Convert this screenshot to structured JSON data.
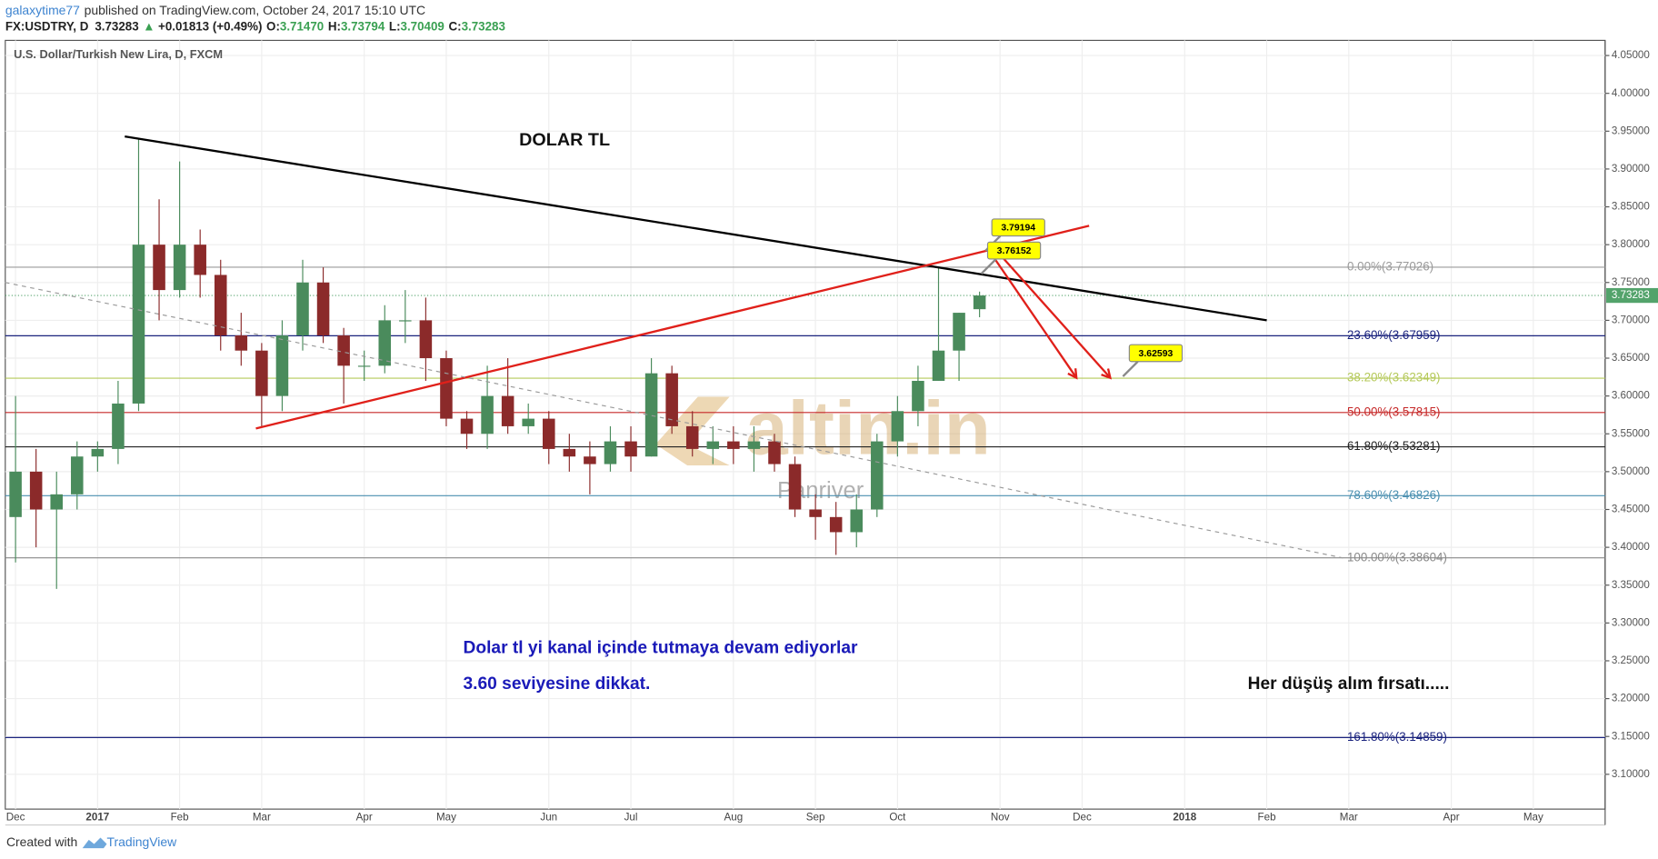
{
  "header": {
    "user": "galaxytime77",
    "published": "published on TradingView.com, October 24, 2017 15:10 UTC",
    "symbol": "FX:USDTRY, D",
    "price": "3.73283",
    "arrow": "▲",
    "change": "+0.01813 (+0.49%)",
    "ohlc": [
      {
        "label": "O:",
        "value": "3.71470"
      },
      {
        "label": "H:",
        "value": "3.73794"
      },
      {
        "label": "L:",
        "value": "3.70409"
      },
      {
        "label": "C:",
        "value": "3.73283"
      }
    ]
  },
  "chart_data": {
    "type": "candlestick",
    "title": "U.S. Dollar/Turkish New Lira, D, FXCM",
    "categories": [
      "Dec",
      null,
      null,
      null,
      "2017",
      null,
      null,
      null,
      "Feb",
      null,
      null,
      null,
      "Mar",
      null,
      null,
      null,
      null,
      "Apr",
      null,
      null,
      null,
      "May",
      null,
      null,
      null,
      null,
      "Jun",
      null,
      null,
      null,
      "Jul",
      null,
      null,
      null,
      null,
      "Aug",
      null,
      null,
      null,
      "Sep",
      null,
      null,
      null,
      "Oct",
      null,
      null,
      null,
      null,
      "Nov",
      null,
      null,
      null,
      "Dec",
      null,
      null,
      null,
      null,
      "2018",
      null,
      null,
      null,
      "Feb",
      null,
      null,
      null,
      "Mar",
      null,
      null,
      null,
      null,
      "Apr",
      null,
      null,
      null,
      "May",
      null,
      null,
      null
    ],
    "open": [
      3.44,
      3.5,
      3.45,
      3.47,
      3.52,
      3.53,
      3.59,
      3.8,
      3.74,
      3.8,
      3.76,
      3.68,
      3.66,
      3.6,
      3.68,
      3.75,
      3.68,
      3.64,
      3.64,
      3.7,
      3.7,
      3.65,
      3.57,
      3.55,
      3.6,
      3.56,
      3.57,
      3.53,
      3.52,
      3.51,
      3.54,
      3.52,
      3.63,
      3.56,
      3.53,
      3.54,
      3.53,
      3.54,
      3.51,
      3.45,
      3.44,
      3.42,
      3.45,
      3.54,
      3.58,
      3.62,
      3.66,
      3.7147,
      null,
      null,
      null,
      null,
      null,
      null,
      null,
      null,
      null,
      null,
      null,
      null,
      null,
      null,
      null,
      null,
      null,
      null,
      null,
      null,
      null,
      null,
      null,
      null,
      null,
      null,
      null,
      null,
      null,
      null
    ],
    "high": [
      3.6,
      3.53,
      3.5,
      3.54,
      3.54,
      3.62,
      3.94,
      3.86,
      3.91,
      3.82,
      3.78,
      3.71,
      3.67,
      3.7,
      3.78,
      3.77,
      3.69,
      3.66,
      3.72,
      3.74,
      3.73,
      3.66,
      3.58,
      3.64,
      3.65,
      3.59,
      3.58,
      3.55,
      3.54,
      3.56,
      3.56,
      3.65,
      3.64,
      3.58,
      3.56,
      3.56,
      3.56,
      3.55,
      3.52,
      3.47,
      3.46,
      3.47,
      3.55,
      3.6,
      3.64,
      3.77026,
      3.71,
      3.73794,
      null,
      null,
      null,
      null,
      null,
      null,
      null,
      null,
      null,
      null,
      null,
      null,
      null,
      null,
      null,
      null,
      null,
      null,
      null,
      null,
      null,
      null,
      null,
      null,
      null,
      null,
      null,
      null,
      null,
      null
    ],
    "low": [
      3.38,
      3.4,
      3.345,
      3.45,
      3.5,
      3.51,
      3.58,
      3.7,
      3.73,
      3.73,
      3.66,
      3.64,
      3.56,
      3.58,
      3.66,
      3.67,
      3.59,
      3.62,
      3.63,
      3.67,
      3.62,
      3.56,
      3.53,
      3.53,
      3.55,
      3.55,
      3.51,
      3.5,
      3.47,
      3.5,
      3.5,
      3.52,
      3.55,
      3.52,
      3.51,
      3.51,
      3.5,
      3.5,
      3.44,
      3.41,
      3.39,
      3.4,
      3.44,
      3.52,
      3.56,
      3.62,
      3.62,
      3.70409,
      null,
      null,
      null,
      null,
      null,
      null,
      null,
      null,
      null,
      null,
      null,
      null,
      null,
      null,
      null,
      null,
      null,
      null,
      null,
      null,
      null,
      null,
      null,
      null,
      null,
      null,
      null,
      null,
      null,
      null
    ],
    "close": [
      3.5,
      3.45,
      3.47,
      3.52,
      3.53,
      3.59,
      3.8,
      3.74,
      3.8,
      3.76,
      3.68,
      3.66,
      3.6,
      3.68,
      3.75,
      3.68,
      3.64,
      3.64,
      3.7,
      3.7,
      3.65,
      3.57,
      3.55,
      3.6,
      3.56,
      3.57,
      3.53,
      3.52,
      3.51,
      3.54,
      3.52,
      3.63,
      3.56,
      3.53,
      3.54,
      3.53,
      3.54,
      3.51,
      3.45,
      3.44,
      3.42,
      3.45,
      3.54,
      3.58,
      3.62,
      3.66,
      3.71,
      3.73283,
      null,
      null,
      null,
      null,
      null,
      null,
      null,
      null,
      null,
      null,
      null,
      null,
      null,
      null,
      null,
      null,
      null,
      null,
      null,
      null,
      null,
      null,
      null,
      null,
      null,
      null,
      null,
      null,
      null,
      null
    ],
    "up_color": "#4a8b5c",
    "down_color": "#8b2a2a",
    "ylim": [
      3.054,
      4.07
    ],
    "yticks": [
      {
        "value": 3.1,
        "label": "3.10000"
      },
      {
        "value": 3.15,
        "label": "3.15000"
      },
      {
        "value": 3.2,
        "label": "3.20000"
      },
      {
        "value": 3.25,
        "label": "3.25000"
      },
      {
        "value": 3.3,
        "label": "3.30000"
      },
      {
        "value": 3.35,
        "label": "3.35000"
      },
      {
        "value": 3.4,
        "label": "3.40000"
      },
      {
        "value": 3.45,
        "label": "3.45000"
      },
      {
        "value": 3.5,
        "label": "3.50000"
      },
      {
        "value": 3.55,
        "label": "3.55000"
      },
      {
        "value": 3.6,
        "label": "3.60000"
      },
      {
        "value": 3.65,
        "label": "3.65000"
      },
      {
        "value": 3.7,
        "label": "3.70000"
      },
      {
        "value": 3.75,
        "label": "3.75000"
      },
      {
        "value": 3.8,
        "label": "3.80000"
      },
      {
        "value": 3.85,
        "label": "3.85000"
      },
      {
        "value": 3.9,
        "label": "3.90000"
      },
      {
        "value": 3.95,
        "label": "3.95000"
      },
      {
        "value": 4.0,
        "label": "4.00000"
      },
      {
        "value": 4.05,
        "label": "4.05000"
      }
    ],
    "grid": true,
    "last_price": 3.73283,
    "last_price_color": "#53a36b",
    "fib_levels": [
      {
        "label": "0.00%(3.77026)",
        "value": 3.77026,
        "color": "#9a9a9a"
      },
      {
        "label": "23.60%(3.67959)",
        "value": 3.67959,
        "color": "#1a237e"
      },
      {
        "label": "38.20%(3.62349)",
        "value": 3.62349,
        "color": "#b5c95a"
      },
      {
        "label": "50.00%(3.57815)",
        "value": 3.57815,
        "color": "#c62828"
      },
      {
        "label": "61.80%(3.53281)",
        "value": 3.53281,
        "color": "#222222"
      },
      {
        "label": "78.60%(3.46826)",
        "value": 3.46826,
        "color": "#4a8fb0"
      },
      {
        "label": "100.00%(3.38604)",
        "value": 3.38604,
        "color": "#8a8a8a"
      },
      {
        "label": "161.80%(3.14859)",
        "value": 3.14859,
        "color": "#1a237e"
      }
    ],
    "trendlines": [
      {
        "color": "#000000",
        "values": [
          3.943,
          3.7
        ],
        "dashed": false
      },
      {
        "color": "#e0201a",
        "values": [
          3.557,
          3.825
        ],
        "dashed": false
      },
      {
        "color": "#999999",
        "values": [
          3.75,
          3.386
        ],
        "dashed": true
      }
    ],
    "arrows": [
      {
        "color": "#e0201a",
        "values": [
          3.793,
          3.624
        ]
      },
      {
        "color": "#e0201a",
        "values": [
          3.788,
          3.624
        ]
      }
    ],
    "callouts": [
      3.79194,
      3.76152,
      3.62593
    ],
    "annotations": [
      {
        "text": "DOLAR TL",
        "color": "#111111"
      },
      {
        "text": "Dolar tl yi kanal içinde tutmaya devam ediyorlar",
        "color": "#1a1ab8"
      },
      {
        "text": "3.60 seviyesine dikkat.",
        "color": "#1a1ab8"
      },
      {
        "text": "Her düşüş alım fırsatı.....",
        "color": "#111111"
      }
    ],
    "watermark": [
      "altin.in",
      "Panriver"
    ]
  },
  "footer": {
    "text": "Created with",
    "brand": "TradingView"
  }
}
